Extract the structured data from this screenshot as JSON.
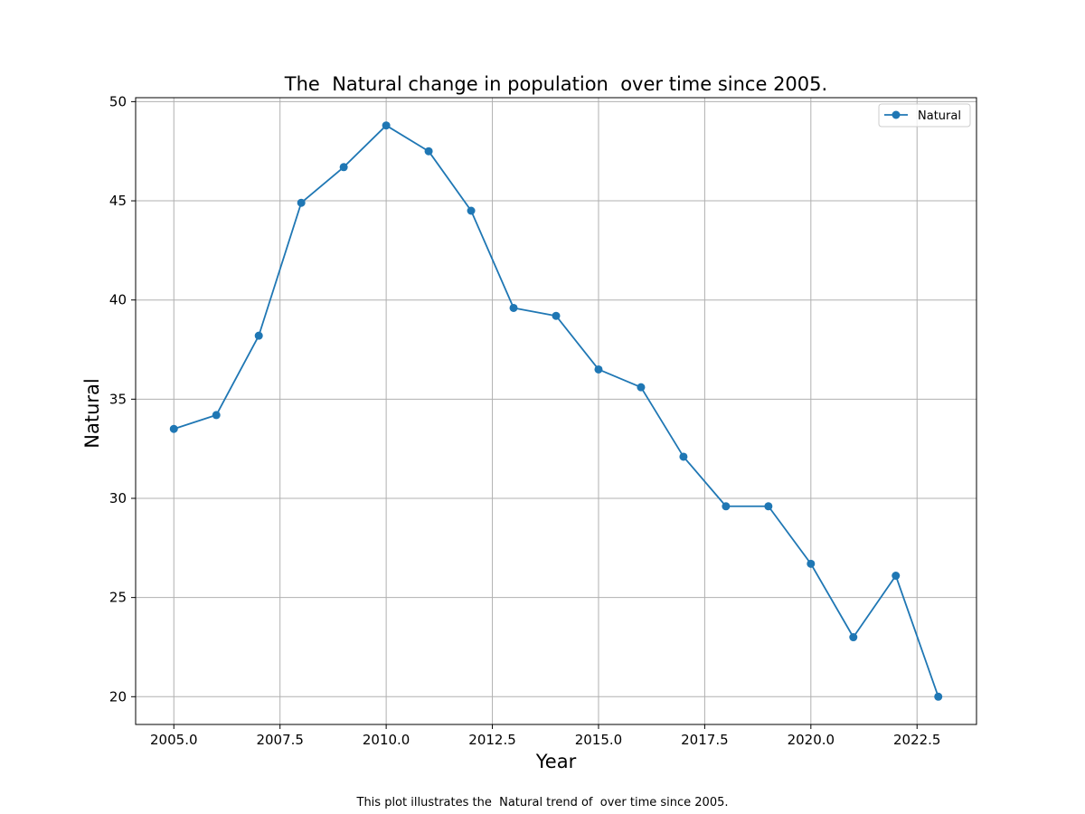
{
  "chart_data": {
    "type": "line",
    "title": "The  Natural change in population  over time since 2005.",
    "xlabel": "Year",
    "ylabel": "Natural",
    "caption": "This plot illustrates the  Natural trend of  over time since 2005.",
    "xlim": [
      2004.1,
      2023.9
    ],
    "ylim": [
      18.6,
      50.2
    ],
    "x_ticks": [
      2005.0,
      2007.5,
      2010.0,
      2012.5,
      2015.0,
      2017.5,
      2020.0,
      2022.5
    ],
    "x_tick_labels": [
      "2005.0",
      "2007.5",
      "2010.0",
      "2012.5",
      "2015.0",
      "2017.5",
      "2020.0",
      "2022.5"
    ],
    "y_ticks": [
      20,
      25,
      30,
      35,
      40,
      45,
      50
    ],
    "y_tick_labels": [
      "20",
      "25",
      "30",
      "35",
      "40",
      "45",
      "50"
    ],
    "grid": true,
    "legend_position": "top-right",
    "x": [
      2005,
      2006,
      2007,
      2008,
      2009,
      2010,
      2011,
      2012,
      2013,
      2014,
      2015,
      2016,
      2017,
      2018,
      2019,
      2020,
      2021,
      2022,
      2023
    ],
    "series": [
      {
        "name": "Natural",
        "color": "#1f77b4",
        "marker": "circle",
        "values": [
          33.5,
          34.2,
          38.2,
          44.9,
          46.7,
          48.8,
          47.5,
          44.5,
          39.6,
          39.2,
          36.5,
          35.6,
          32.1,
          29.6,
          29.6,
          26.7,
          23.0,
          26.1,
          20.0
        ]
      }
    ]
  }
}
